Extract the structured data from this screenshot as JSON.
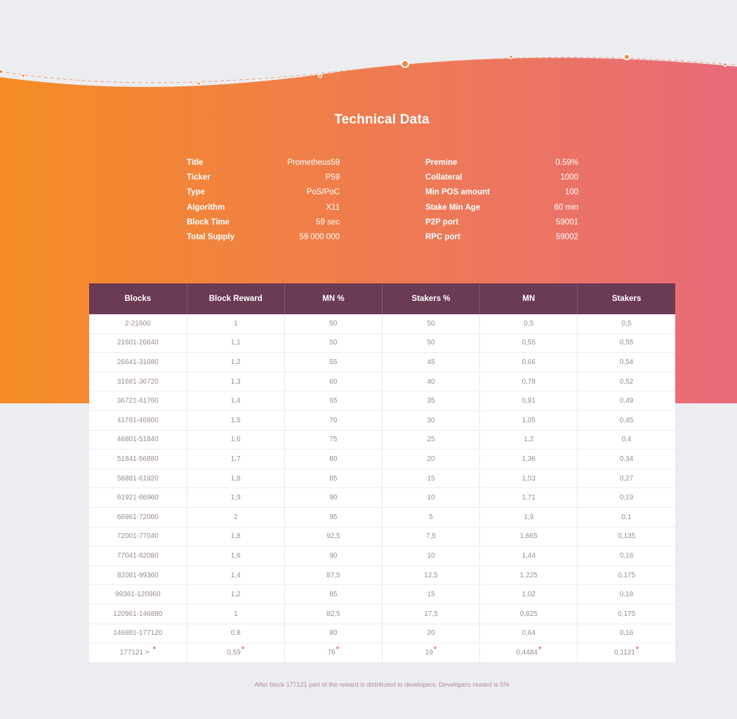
{
  "colors": {
    "gradient_start": "#f58d24",
    "gradient_end": "#e86b7a",
    "table_header_bg": "#6b3a55",
    "page_bg": "#ecedf1",
    "asterisk": "#e02e3c"
  },
  "section": {
    "title": "Technical Data"
  },
  "specs_left": [
    {
      "key": "Title",
      "value": "Prometheus59"
    },
    {
      "key": "Ticker",
      "value": "P59"
    },
    {
      "key": "Type",
      "value": "PoS/PoC"
    },
    {
      "key": "Algorithm",
      "value": "X11"
    },
    {
      "key": "Block Time",
      "value": "59 sec"
    },
    {
      "key": "Total Supply",
      "value": "59 000 000"
    }
  ],
  "specs_right": [
    {
      "key": "Premine",
      "value": "0.59%"
    },
    {
      "key": "Collateral",
      "value": "1000"
    },
    {
      "key": "Min POS amount",
      "value": "100"
    },
    {
      "key": "Stake Min Age",
      "value": "60 min"
    },
    {
      "key": "P2P port",
      "value": "59001"
    },
    {
      "key": "RPC port",
      "value": "59002"
    }
  ],
  "table": {
    "headers": [
      "Blocks",
      "Block Reward",
      "MN %",
      "Stakers %",
      "MN",
      "Stakers"
    ],
    "rows": [
      [
        "2-21600",
        "1",
        "50",
        "50",
        "0,5",
        "0,5"
      ],
      [
        "21601-26640",
        "1,1",
        "50",
        "50",
        "0,55",
        "0,55"
      ],
      [
        "26641-31680",
        "1,2",
        "55",
        "45",
        "0,66",
        "0,54"
      ],
      [
        "31681-36720",
        "1,3",
        "60",
        "40",
        "0,78",
        "0,52"
      ],
      [
        "36721-41760",
        "1,4",
        "65",
        "35",
        "0,91",
        "0,49"
      ],
      [
        "41761-46800",
        "1,5",
        "70",
        "30",
        "1,05",
        "0,45"
      ],
      [
        "46801-51840",
        "1,6",
        "75",
        "25",
        "1,2",
        "0,4"
      ],
      [
        "51841-56880",
        "1,7",
        "80",
        "20",
        "1,36",
        "0,34"
      ],
      [
        "56881-61920",
        "1,8",
        "85",
        "15",
        "1,53",
        "0,27"
      ],
      [
        "61921-66960",
        "1,9",
        "90",
        "10",
        "1,71",
        "0,19"
      ],
      [
        "66961-72000",
        "2",
        "95",
        "5",
        "1,9",
        "0,1"
      ],
      [
        "72001-77040",
        "1,8",
        "92,5",
        "7,5",
        "1,665",
        "0,135"
      ],
      [
        "77041-82080",
        "1,6",
        "90",
        "10",
        "1,44",
        "0,16"
      ],
      [
        "82081-99360",
        "1,4",
        "87,5",
        "12,5",
        "1,225",
        "0,175"
      ],
      [
        "99361-120960",
        "1,2",
        "85",
        "15",
        "1,02",
        "0,18"
      ],
      [
        "120961-146880",
        "1",
        "82,5",
        "17,5",
        "0,825",
        "0,175"
      ],
      [
        "146881-177120",
        "0,8",
        "80",
        "20",
        "0,64",
        "0,16"
      ]
    ],
    "last_row": [
      "177121 >",
      "0,59",
      "76",
      "19",
      "0,4484",
      "0,1121"
    ],
    "asterisk": "*"
  },
  "footnote": "After block 177121 part of the reward is distributed to developers. Developers reward is 5%"
}
